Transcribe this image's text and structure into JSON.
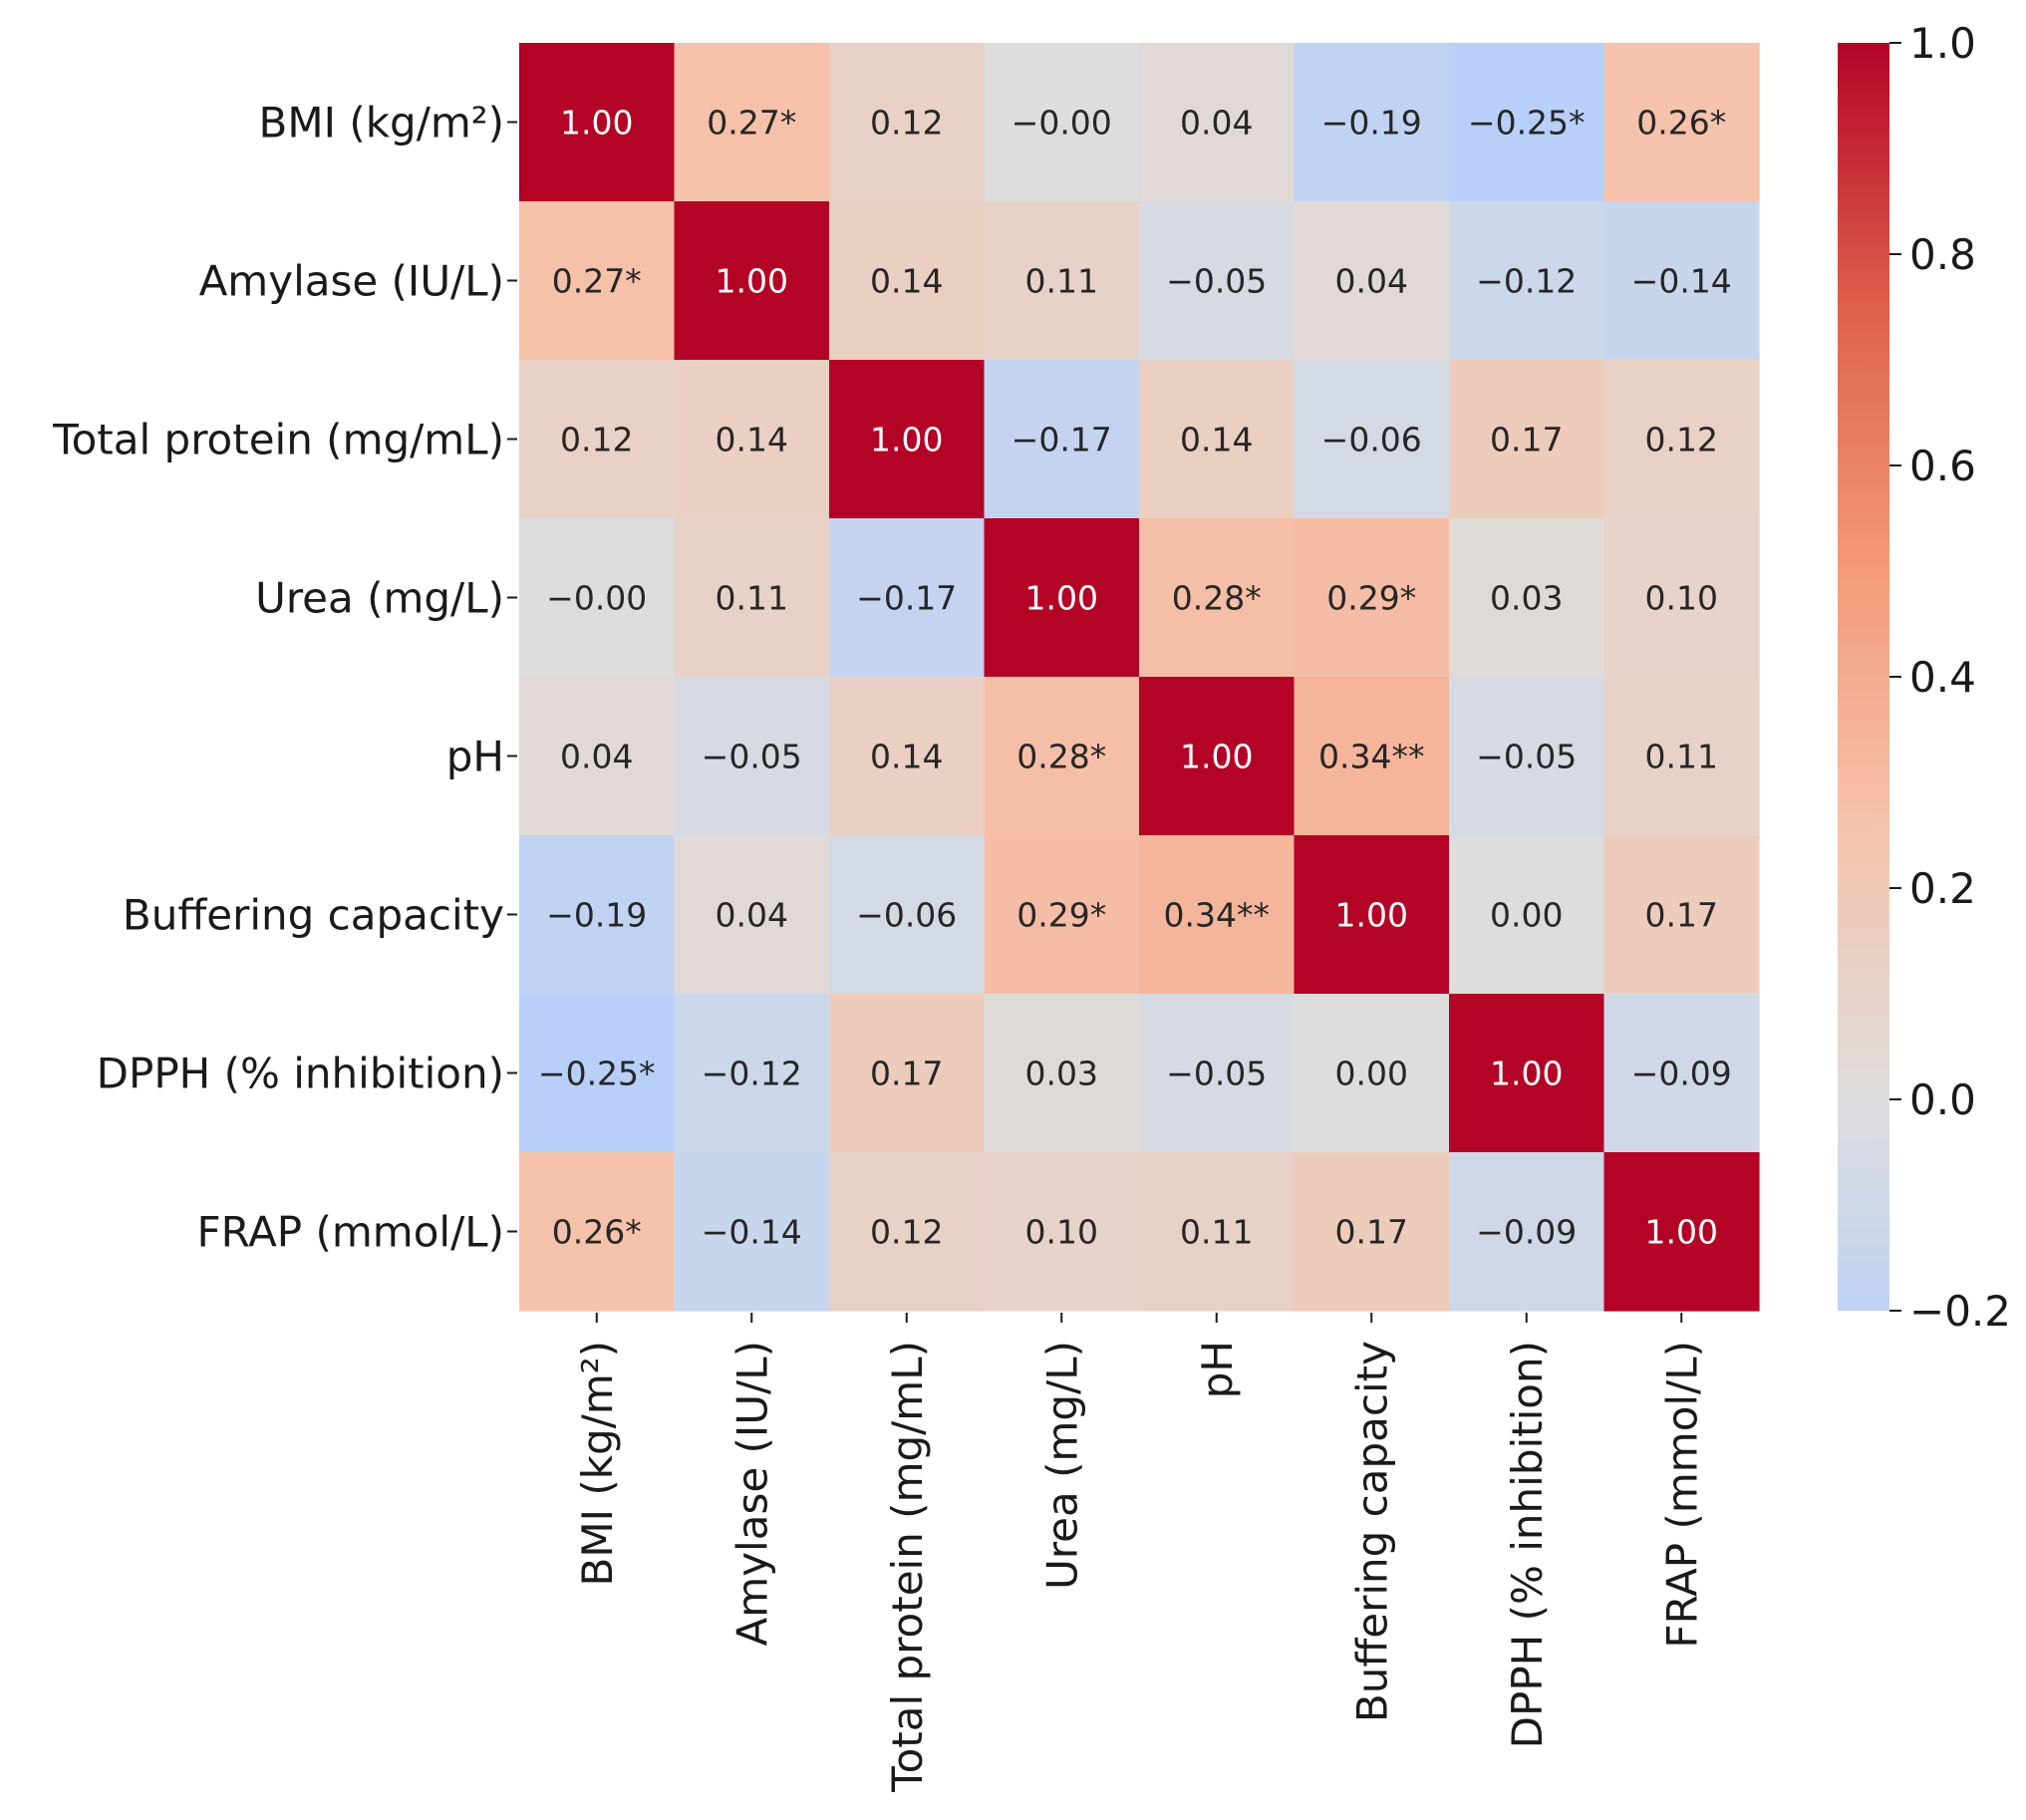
{
  "chart_data": {
    "type": "heatmap",
    "title": "",
    "xlabel": "",
    "ylabel": "",
    "rows": [
      "BMI (kg/m²)",
      "Amylase (IU/L)",
      "Total protein (mg/mL)",
      "Urea (mg/L)",
      "pH",
      "Buffering capacity",
      "DPPH (% inhibition)",
      "FRAP (mmol/L)"
    ],
    "columns": [
      "BMI (kg/m²)",
      "Amylase (IU/L)",
      "Total protein (mg/mL)",
      "Urea (mg/L)",
      "pH",
      "Buffering capacity",
      "DPPH (% inhibition)",
      "FRAP (mmol/L)"
    ],
    "values": [
      [
        1.0,
        0.27,
        0.12,
        -0.0,
        0.04,
        -0.19,
        -0.25,
        0.26
      ],
      [
        0.27,
        1.0,
        0.14,
        0.11,
        -0.05,
        0.04,
        -0.12,
        -0.14
      ],
      [
        0.12,
        0.14,
        1.0,
        -0.17,
        0.14,
        -0.06,
        0.17,
        0.12
      ],
      [
        -0.0,
        0.11,
        -0.17,
        1.0,
        0.28,
        0.29,
        0.03,
        0.1
      ],
      [
        0.04,
        -0.05,
        0.14,
        0.28,
        1.0,
        0.34,
        -0.05,
        0.11
      ],
      [
        -0.19,
        0.04,
        -0.06,
        0.29,
        0.34,
        1.0,
        0.0,
        0.17
      ],
      [
        -0.25,
        -0.12,
        0.17,
        0.03,
        -0.05,
        0.0,
        1.0,
        -0.09
      ],
      [
        0.26,
        -0.14,
        0.12,
        0.1,
        0.11,
        0.17,
        -0.09,
        1.0
      ]
    ],
    "annotations": [
      [
        "1.00",
        "0.27*",
        "0.12",
        "−0.00",
        "0.04",
        "−0.19",
        "−0.25*",
        "0.26*"
      ],
      [
        "0.27*",
        "1.00",
        "0.14",
        "0.11",
        "−0.05",
        "0.04",
        "−0.12",
        "−0.14"
      ],
      [
        "0.12",
        "0.14",
        "1.00",
        "−0.17",
        "0.14",
        "−0.06",
        "0.17",
        "0.12"
      ],
      [
        "−0.00",
        "0.11",
        "−0.17",
        "1.00",
        "0.28*",
        "0.29*",
        "0.03",
        "0.10"
      ],
      [
        "0.04",
        "−0.05",
        "0.14",
        "0.28*",
        "1.00",
        "0.34**",
        "−0.05",
        "0.11"
      ],
      [
        "−0.19",
        "0.04",
        "−0.06",
        "0.29*",
        "0.34**",
        "1.00",
        "0.00",
        "0.17"
      ],
      [
        "−0.25*",
        "−0.12",
        "0.17",
        "0.03",
        "−0.05",
        "0.00",
        "1.00",
        "−0.09"
      ],
      [
        "0.26*",
        "−0.14",
        "0.12",
        "0.10",
        "0.11",
        "0.17",
        "−0.09",
        "1.00"
      ]
    ],
    "colormap": "coolwarm",
    "vmin": -0.2,
    "vmax": 1.0,
    "colorbar": {
      "ticks": [
        1.0,
        0.8,
        0.6,
        0.4,
        0.2,
        0.0,
        -0.2
      ],
      "tick_labels": [
        "1.0",
        "0.8",
        "0.6",
        "0.4",
        "0.2",
        "0.0",
        "−0.2"
      ],
      "position": "right"
    }
  }
}
